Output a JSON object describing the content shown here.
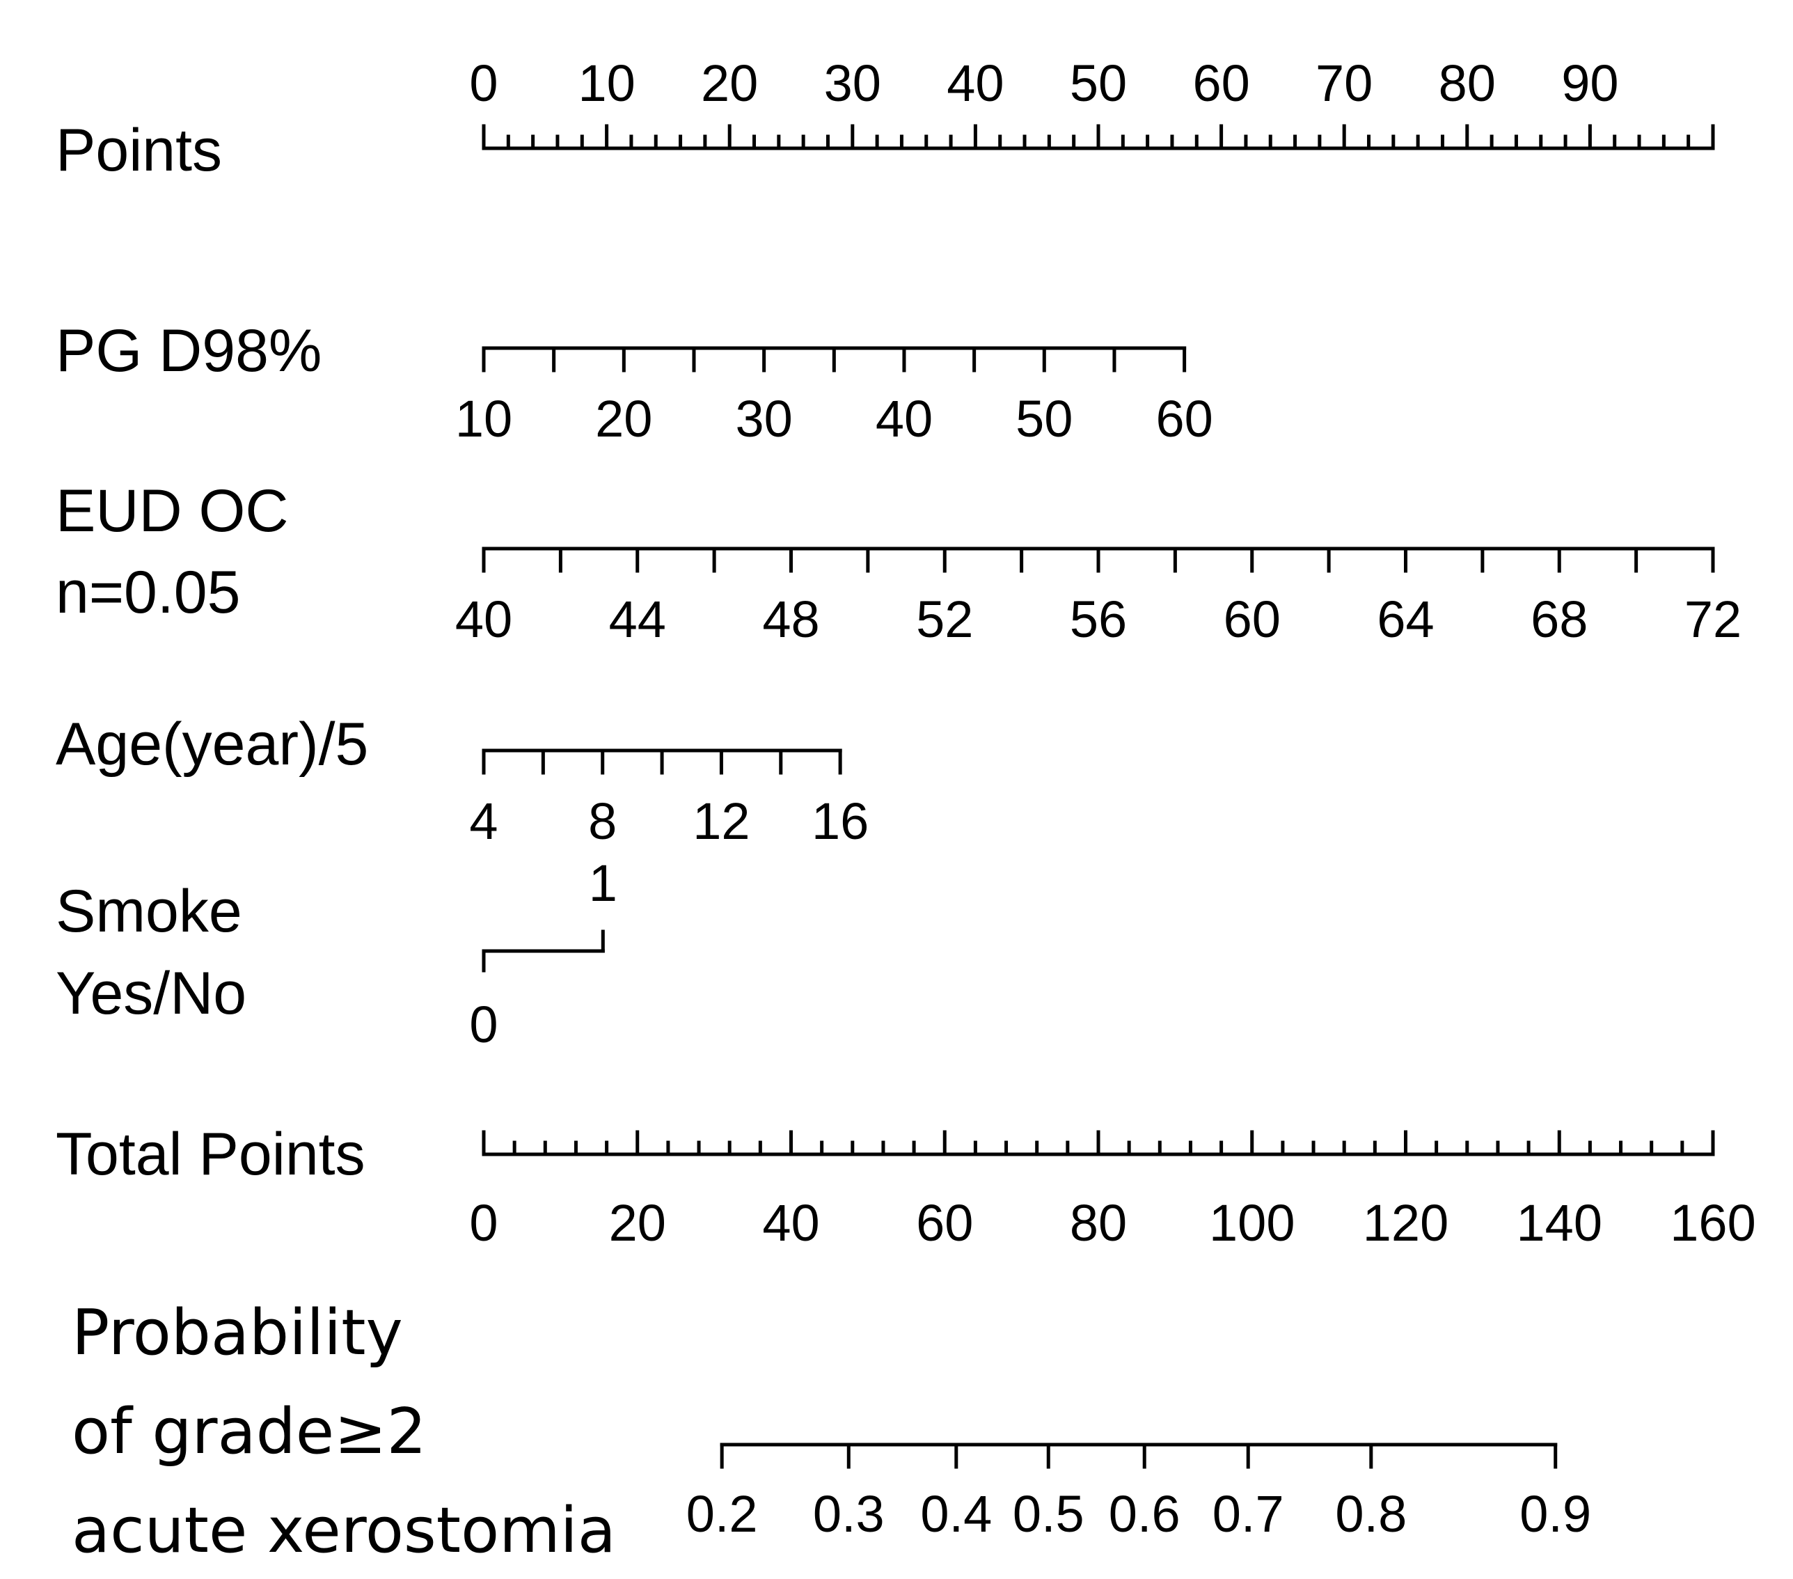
{
  "chart_data": {
    "type": "nomogram",
    "rows": [
      {
        "id": "points",
        "label_lines": [
          "Points"
        ],
        "range": [
          0,
          100
        ],
        "minor_step": 2,
        "major_step": 10,
        "tick_labels": [
          "0",
          "10",
          "20",
          "30",
          "40",
          "50",
          "60",
          "70",
          "80",
          "90"
        ],
        "tick_values": [
          0,
          10,
          20,
          30,
          40,
          50,
          60,
          70,
          80,
          90
        ],
        "label_position": "above"
      },
      {
        "id": "pg-d98",
        "label_lines": [
          "PG D98%"
        ],
        "range": [
          10,
          60
        ],
        "points_range": [
          0,
          57
        ],
        "tick_step": 5,
        "tick_labels": [
          "10",
          "20",
          "30",
          "40",
          "50",
          "60"
        ],
        "tick_values": [
          10,
          20,
          30,
          40,
          50,
          60
        ],
        "label_position": "below"
      },
      {
        "id": "eud-oc",
        "label_lines": [
          "EUD OC",
          "n=0.05"
        ],
        "range": [
          40,
          72
        ],
        "points_range": [
          0,
          100
        ],
        "tick_step": 2,
        "tick_labels": [
          "40",
          "44",
          "48",
          "52",
          "56",
          "60",
          "64",
          "68",
          "72"
        ],
        "tick_values": [
          40,
          44,
          48,
          52,
          56,
          60,
          64,
          68,
          72
        ],
        "label_position": "below"
      },
      {
        "id": "age",
        "label_lines": [
          "Age(year)/5"
        ],
        "range": [
          4,
          16
        ],
        "points_range": [
          0,
          29
        ],
        "tick_step": 2,
        "tick_labels": [
          "4",
          "8",
          "12",
          "16"
        ],
        "tick_values": [
          4,
          8,
          12,
          16
        ],
        "label_position": "below"
      },
      {
        "id": "smoke",
        "label_lines": [
          "Smoke",
          "Yes/No"
        ],
        "levels": [
          {
            "label": "0",
            "points": 0
          },
          {
            "label": "1",
            "points": 9.7
          }
        ]
      },
      {
        "id": "total-points",
        "label_lines": [
          "Total Points"
        ],
        "range": [
          0,
          160
        ],
        "minor_step": 4,
        "major_step": 20,
        "tick_labels": [
          "0",
          "20",
          "40",
          "60",
          "80",
          "100",
          "120",
          "140",
          "160"
        ],
        "tick_values": [
          0,
          20,
          40,
          60,
          80,
          100,
          120,
          140,
          160
        ],
        "label_position": "below"
      },
      {
        "id": "probability",
        "label_lines": [
          "Probability",
          "of grade≥2",
          "acute xerostomia"
        ],
        "tick_labels": [
          "0.2",
          "0.3",
          "0.4",
          "0.5",
          "0.6",
          "0.7",
          "0.8",
          "0.9"
        ],
        "tick_values": [
          0.2,
          0.3,
          0.4,
          0.5,
          0.6,
          0.7,
          0.8,
          0.9
        ],
        "total_points_at_ticks": [
          31,
          47.5,
          61.5,
          73.5,
          86,
          99.5,
          115.5,
          139.5
        ],
        "label_position": "below"
      }
    ]
  }
}
